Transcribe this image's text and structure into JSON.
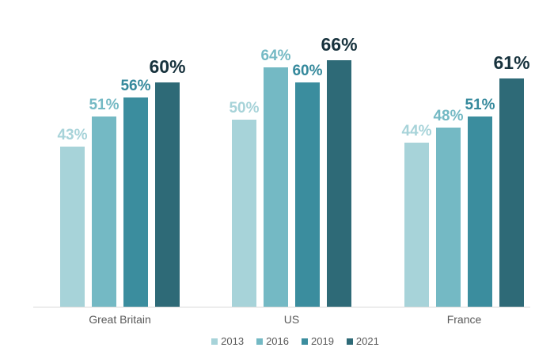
{
  "chart_data": {
    "type": "bar",
    "title": "",
    "categories": [
      "Great Britain",
      "US",
      "France"
    ],
    "series": [
      {
        "name": "2013",
        "color": "#a7d3d9",
        "label_color": "#a7d3d9",
        "values": [
          43,
          50,
          44
        ]
      },
      {
        "name": "2016",
        "color": "#74b9c4",
        "label_color": "#74b9c4",
        "values": [
          51,
          64,
          48
        ]
      },
      {
        "name": "2019",
        "color": "#3b8d9e",
        "label_color": "#35899c",
        "values": [
          56,
          60,
          51
        ]
      },
      {
        "name": "2021",
        "color": "#2e6a77",
        "label_color": "#17323d",
        "values": [
          60,
          66,
          61
        ]
      }
    ],
    "value_suffix": "%",
    "data_labels": [
      [
        "43%",
        "50%",
        "44%"
      ],
      [
        "51%",
        "64%",
        "48%"
      ],
      [
        "56%",
        "60%",
        "51%"
      ],
      [
        "60%",
        "66%",
        "61%"
      ]
    ],
    "ylim": [
      0,
      70
    ],
    "grid": false,
    "legend_position": "bottom",
    "legend_entries": [
      "2013",
      "2016",
      "2019",
      "2021"
    ],
    "axis_line_color": "#d9d9d9",
    "category_label_color": "#595959",
    "legend_text_color": "#595959"
  }
}
